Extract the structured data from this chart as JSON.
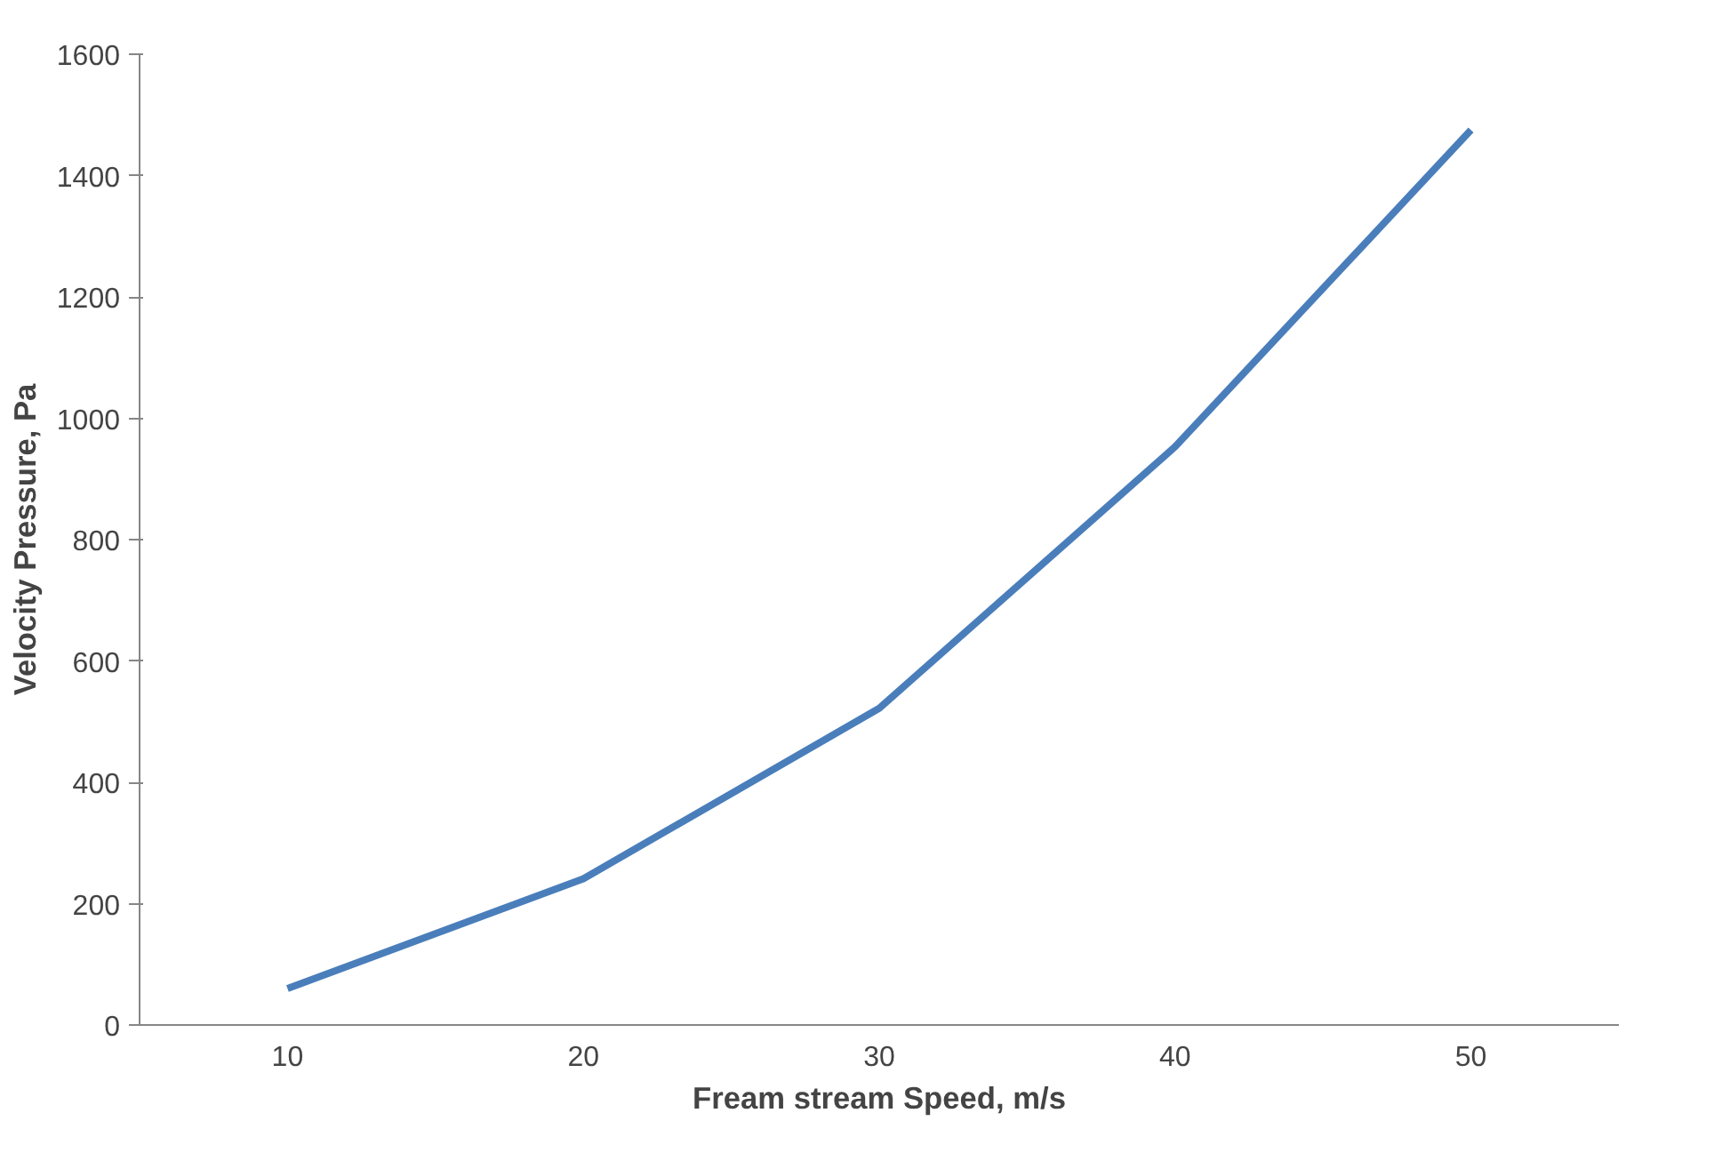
{
  "chart_data": {
    "type": "line",
    "xlabel": "Fream stream Speed, m/s",
    "ylabel": "Velocity Pressure, Pa",
    "categories": [
      "10",
      "20",
      "30",
      "40",
      "50"
    ],
    "series": [
      {
        "color": "#4a7ebb",
        "values": [
          60,
          241,
          522,
          953,
          1475
        ]
      }
    ],
    "ylim": [
      0,
      1600
    ],
    "yticks": [
      0,
      200,
      400,
      600,
      800,
      1000,
      1200,
      1400,
      1600
    ],
    "grid": false,
    "marker": "none",
    "line_style": "solid"
  }
}
